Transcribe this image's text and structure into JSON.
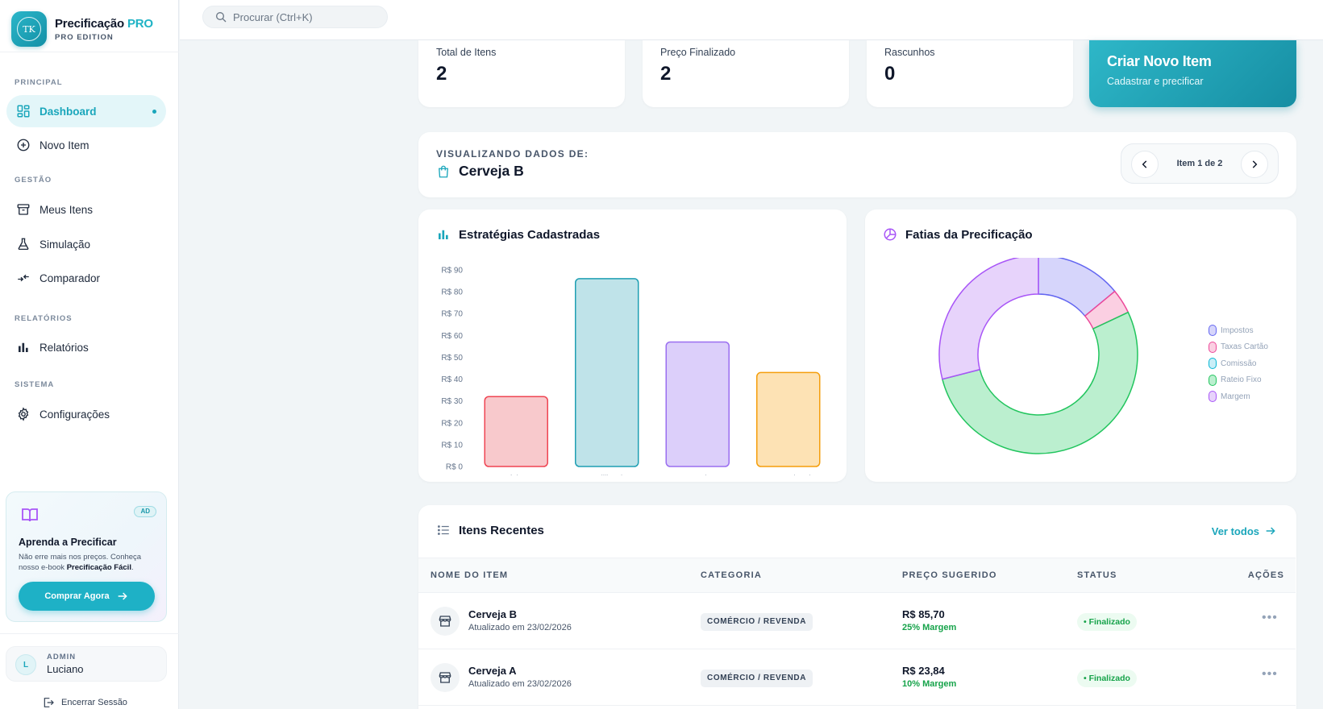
{
  "brand": {
    "title": "Precificação",
    "title_pro": "PRO",
    "edition": "PRO EDITION",
    "logo_text": "TK"
  },
  "search": {
    "placeholder": "Procurar (Ctrl+K)"
  },
  "sidebar": {
    "sections": [
      "PRINCIPAL",
      "GESTÃO",
      "RELATÓRIOS",
      "SISTEMA"
    ],
    "items": [
      {
        "label": "Dashboard",
        "icon": "dashboard-icon",
        "active": true
      },
      {
        "label": "Novo Item",
        "icon": "plus-circle-icon"
      },
      {
        "label": "Meus Itens",
        "icon": "archive-box-icon"
      },
      {
        "label": "Simulação",
        "icon": "flask-icon"
      },
      {
        "label": "Comparador",
        "icon": "compare-arrows-icon"
      },
      {
        "label": "Relatórios",
        "icon": "bar-chart-icon"
      },
      {
        "label": "Configurações",
        "icon": "gear-icon"
      }
    ]
  },
  "promo": {
    "badge": "AD",
    "title": "Aprenda a Precificar",
    "desc_prefix": "Não erre mais nos preços. Conheça nosso e-book ",
    "desc_bold": "Precificação Fácil",
    "desc_suffix": ".",
    "button": "Comprar Agora"
  },
  "user": {
    "initial": "L",
    "role": "ADMIN",
    "name": "Luciano",
    "logout": "Encerrar Sessão"
  },
  "stats": [
    {
      "label": "Total de Itens",
      "value": "2"
    },
    {
      "label": "Preço Finalizado",
      "value": "2"
    },
    {
      "label": "Rascunhos",
      "value": "0"
    }
  ],
  "cta": {
    "title": "Criar Novo Item",
    "subtitle": "Cadastrar e precificar"
  },
  "viewer": {
    "label": "VISUALIZANDO DADOS DE:",
    "item": "Cerveja B",
    "pager": "Item 1 de 2"
  },
  "bar_panel": {
    "title": "Estratégias Cadastradas"
  },
  "pie_panel": {
    "title": "Fatias da Precificação"
  },
  "chart_data": [
    {
      "type": "bar",
      "title": "Estratégias Cadastradas",
      "categories": [
        "Mínimo",
        "Equilibrado",
        "Agressivo",
        "Promocional"
      ],
      "values": [
        32,
        86,
        57,
        43
      ],
      "colors": [
        {
          "fill": "#f8c9cc",
          "stroke": "#ef4452"
        },
        {
          "fill": "#bfe3e9",
          "stroke": "#1f9fb3"
        },
        {
          "fill": "#dccffa",
          "stroke": "#9a6ef0"
        },
        {
          "fill": "#fde2b4",
          "stroke": "#f59e0b"
        }
      ],
      "ylim": [
        0,
        90
      ],
      "yticks": [
        "R$ 0",
        "R$ 10",
        "R$ 20",
        "R$ 30",
        "R$ 40",
        "R$ 50",
        "R$ 60",
        "R$ 70",
        "R$ 80",
        "R$ 90"
      ]
    },
    {
      "type": "pie",
      "title": "Fatias da Precificação",
      "legend_position": "right",
      "labels": [
        "Impostos",
        "Taxas Cartão",
        "Comissão",
        "Rateio Fixo",
        "Margem"
      ],
      "values": [
        14,
        4,
        0,
        53,
        29
      ],
      "colors": [
        {
          "fill": "#d6d5fb",
          "stroke": "#6366f1"
        },
        {
          "fill": "#fbcfe2",
          "stroke": "#ec4899"
        },
        {
          "fill": "#c9eef7",
          "stroke": "#06b6d4"
        },
        {
          "fill": "#bbefcf",
          "stroke": "#22c55e"
        },
        {
          "fill": "#e7d3fb",
          "stroke": "#a855f7"
        }
      ]
    }
  ],
  "recent": {
    "title": "Itens Recentes",
    "see_all": "Ver todos",
    "columns": [
      "NOME DO ITEM",
      "CATEGORIA",
      "PREÇO SUGERIDO",
      "STATUS",
      "AÇÕES"
    ],
    "rows": [
      {
        "name": "Cerveja B",
        "updated": "Atualizado em 23/02/2026",
        "category": "COMÉRCIO / REVENDA",
        "price": "R$ 85,70",
        "margin": "25% Margem",
        "status": "• Finalizado",
        "actions": "•••"
      },
      {
        "name": "Cerveja A",
        "updated": "Atualizado em 23/02/2026",
        "category": "COMÉRCIO / REVENDA",
        "price": "R$ 23,84",
        "margin": "10% Margem",
        "status": "• Finalizado",
        "actions": "•••"
      }
    ]
  },
  "colors": {
    "accent": "#1fb3c5",
    "success": "#16a34a",
    "text": "#0f172a"
  }
}
